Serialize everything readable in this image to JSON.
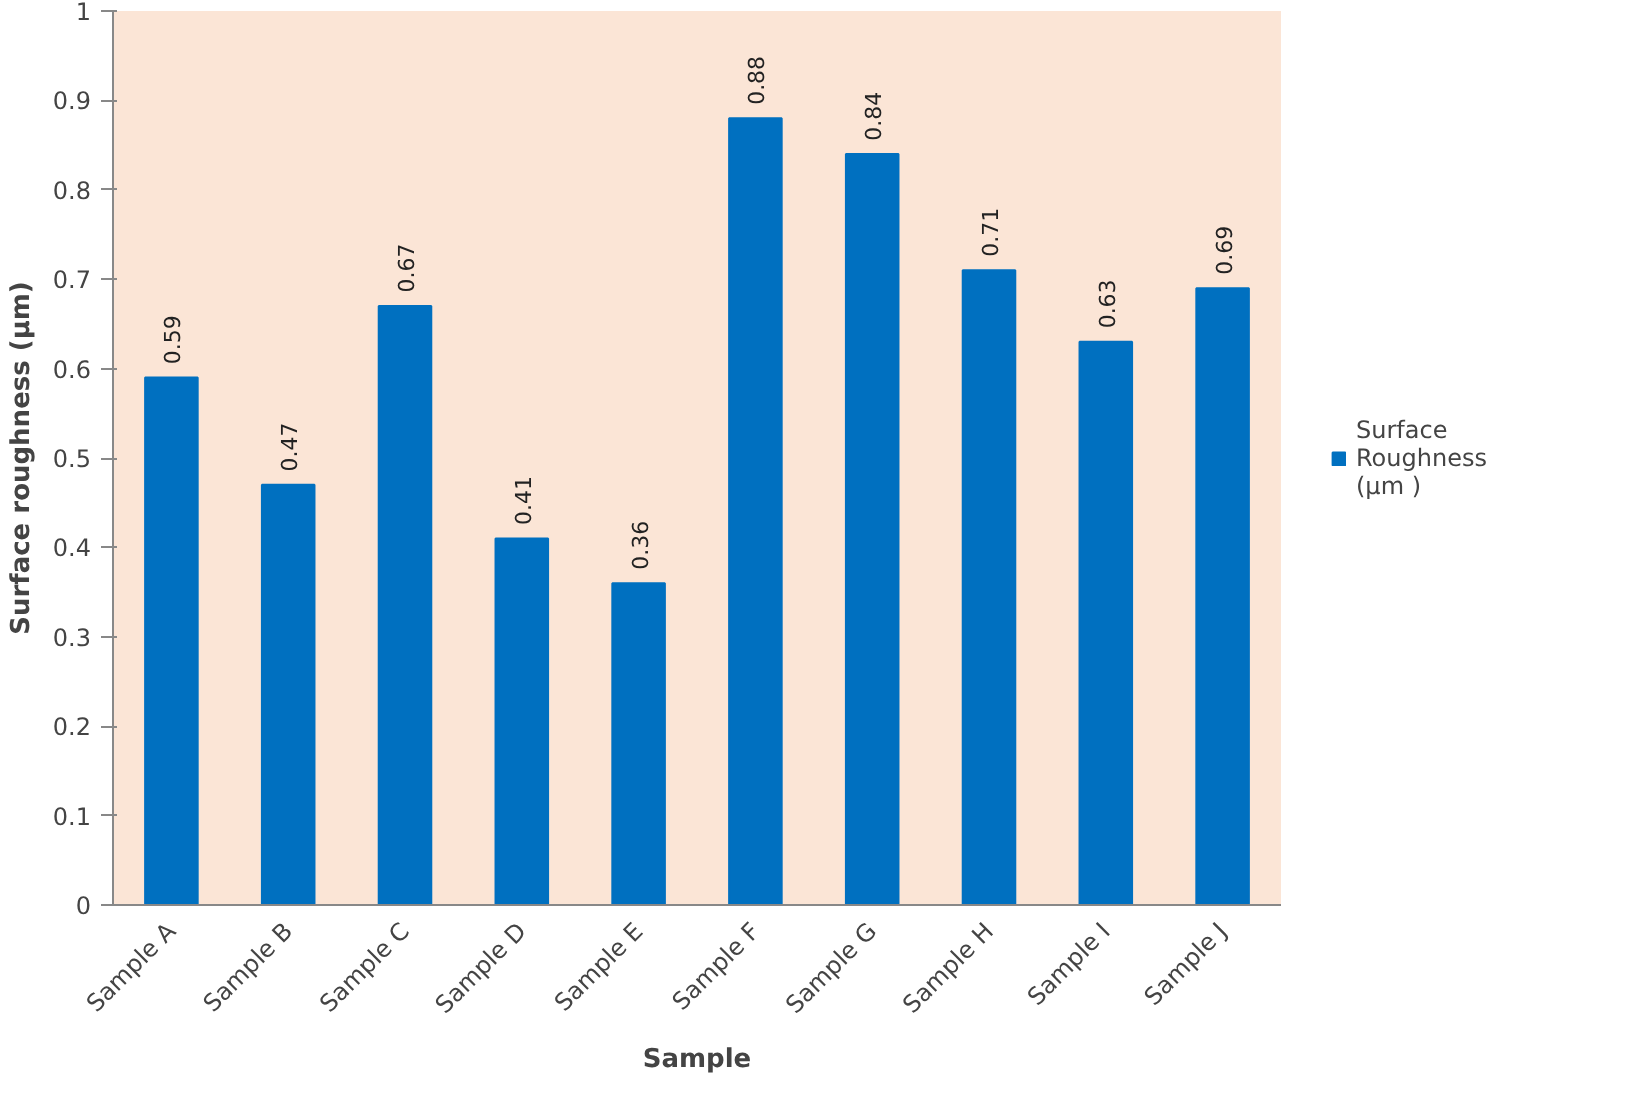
{
  "chart_data": {
    "type": "bar",
    "xlabel": "Sample",
    "ylabel": "Surface roughness (µm)",
    "categories": [
      "Sample A",
      "Sample B",
      "Sample C",
      "Sample D",
      "Sample E",
      "Sample F",
      "Sample G",
      "Sample H",
      "Sample I",
      "Sample J"
    ],
    "series": [
      {
        "name": "Surface Roughness (µm )",
        "color": "#0070c0",
        "values": [
          0.59,
          0.47,
          0.67,
          0.41,
          0.36,
          0.88,
          0.84,
          0.71,
          0.63,
          0.69
        ]
      }
    ],
    "ylim": [
      0,
      1
    ],
    "yticks": [
      0,
      0.1,
      0.2,
      0.3,
      0.4,
      0.5,
      0.6,
      0.7,
      0.8,
      0.9,
      1
    ],
    "data_labels": true,
    "grid": false,
    "legend": "right"
  }
}
